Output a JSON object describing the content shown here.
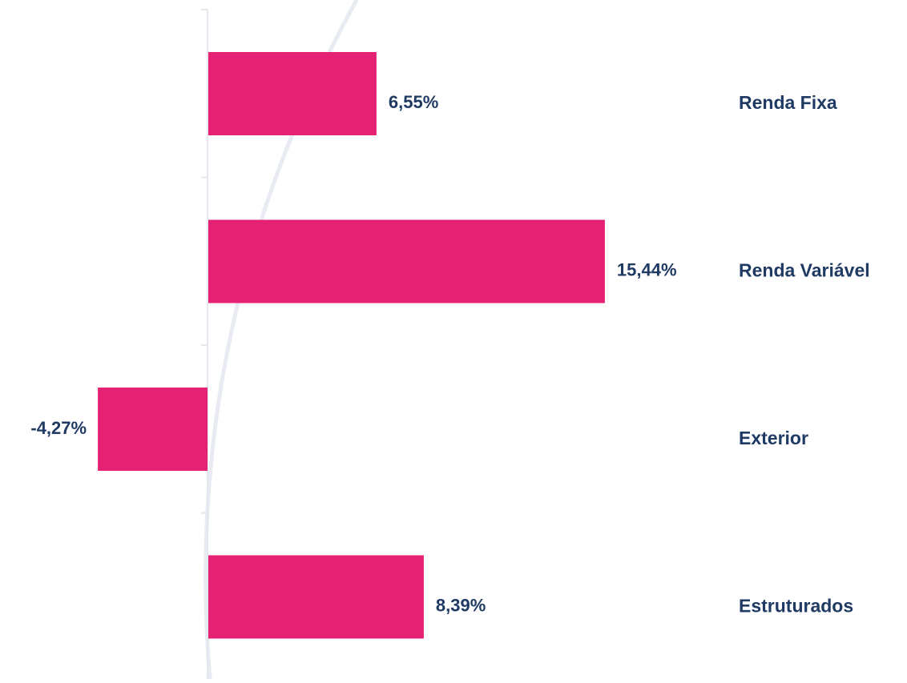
{
  "chart_data": {
    "type": "bar",
    "orientation": "horizontal",
    "categories": [
      "Renda Fixa",
      "Renda Variável",
      "Exterior",
      "Estruturados"
    ],
    "values": [
      6.55,
      15.44,
      -4.27,
      8.39
    ],
    "value_labels": [
      "6,55%",
      "15,44%",
      "-4,27%",
      "8,39%"
    ],
    "title": "",
    "xlabel": "",
    "ylabel": "",
    "xlim": [
      -8,
      17
    ],
    "grid": false,
    "legend": "none",
    "category_label_side": "right"
  },
  "colors": {
    "bar": "#e42173",
    "text": "#1f3a63",
    "axis": "#e4e7ee",
    "arc": "#e8ecf2"
  }
}
